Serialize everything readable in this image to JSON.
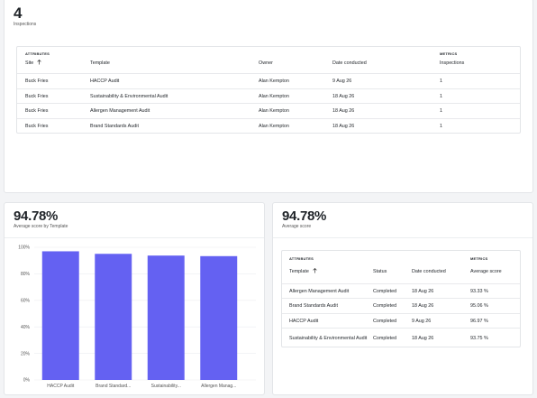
{
  "inspections_card": {
    "value": "4",
    "label": "Inspections",
    "table": {
      "group_attributes": "ATTRIBUTES",
      "group_metrics": "METRICS",
      "columns": [
        "Site",
        "Template",
        "Owner",
        "Date conducted",
        "Inspections"
      ],
      "rows": [
        [
          "Buck Fries",
          "HACCP Audit",
          "Alan Kempton",
          "9 Aug 26",
          "1"
        ],
        [
          "Buck Fries",
          "Sustainability & Environmental Audit",
          "Alan Kempton",
          "18 Aug 26",
          "1"
        ],
        [
          "Buck Fries",
          "Allergen Management Audit",
          "Alan Kempton",
          "18 Aug 26",
          "1"
        ],
        [
          "Buck Fries",
          "Brand Standards Audit",
          "Alan Kempton",
          "18 Aug 26",
          "1"
        ]
      ]
    }
  },
  "chart_data": {
    "type": "bar",
    "title": "94.78%",
    "subtitle": "Average score by Template",
    "categories": [
      "HACCP Audit",
      "Brand Standard...",
      "Sustainability...",
      "Allergen Manag..."
    ],
    "values": [
      96.97,
      95.06,
      93.75,
      93.33
    ],
    "color": "#6461f2",
    "ylim": [
      0,
      100
    ],
    "yticks": [
      {
        "value": 0,
        "label": "0%"
      },
      {
        "value": 20,
        "label": "20%"
      },
      {
        "value": 40,
        "label": "40%"
      },
      {
        "value": 60,
        "label": "60%"
      },
      {
        "value": 80,
        "label": "80%"
      },
      {
        "value": 100,
        "label": "100%"
      }
    ],
    "grid": true
  },
  "score_card": {
    "value": "94.78%",
    "label": "Average score",
    "table": {
      "group_attributes": "ATTRIBUTES",
      "group_metrics": "METRICS",
      "columns": [
        "Template",
        "Status",
        "Date conducted",
        "Average score"
      ],
      "rows": [
        [
          "Allergen Management Audit",
          "Completed",
          "18 Aug 26",
          "93.33 %"
        ],
        [
          "Brand Standards Audit",
          "Completed",
          "18 Aug 26",
          "95.06 %"
        ],
        [
          "HACCP Audit",
          "Completed",
          "9 Aug 26",
          "96.97 %"
        ],
        [
          "Sustainability & Environmental Audit",
          "Completed",
          "18 Aug 26",
          "93.75 %"
        ]
      ]
    }
  }
}
